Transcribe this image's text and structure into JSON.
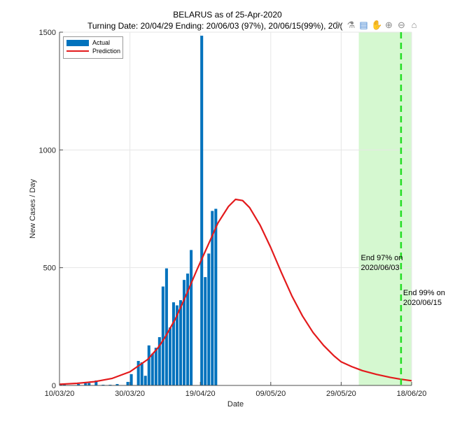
{
  "window": {
    "title_line1": "BELARUS as of 25-Apr-2020",
    "title_line2": "Turning Date: 20/04/29  Ending: 20/06/03 (97%), 20/06/15(99%), 20/("
  },
  "toolbar": [
    {
      "name": "brush-icon",
      "glyph": "✎"
    },
    {
      "name": "datatip-icon",
      "glyph": "⚗"
    },
    {
      "name": "insert-legend-icon",
      "glyph": "▤"
    },
    {
      "name": "pan-hand-icon",
      "glyph": "✋"
    },
    {
      "name": "zoom-in-icon",
      "glyph": "⊕"
    },
    {
      "name": "zoom-out-icon",
      "glyph": "⊖"
    },
    {
      "name": "home-icon",
      "glyph": "⌂"
    }
  ],
  "colors": {
    "bar": "#0072BD",
    "prediction": "#e31a1c",
    "band": "#d5f8d0",
    "dashed": "#22dd22",
    "grid": "#e6e6e6",
    "axis": "#4d4d4d"
  },
  "chart_data": {
    "type": "bar",
    "title": "BELARUS as of 25-Apr-2020",
    "subtitle": "Turning Date: 20/04/29  Ending: 20/06/03 (97%), 20/06/15(99%), 20/(",
    "xlabel": "Date",
    "ylabel": "New Cases / Day",
    "x_start_date": "10/03/20",
    "x_range_days": [
      0,
      100
    ],
    "ylim": [
      0,
      1500
    ],
    "yticks": [
      0,
      500,
      1000,
      1500
    ],
    "xticks": [
      {
        "day": 0,
        "label": "10/03/20"
      },
      {
        "day": 20,
        "label": "30/03/20"
      },
      {
        "day": 40,
        "label": "19/04/20"
      },
      {
        "day": 60,
        "label": "09/05/20"
      },
      {
        "day": 80,
        "label": "29/05/20"
      },
      {
        "day": 100,
        "label": "18/06/20"
      }
    ],
    "grid": true,
    "legend": {
      "position": "top-left",
      "entries": [
        "Actual",
        "Prediction"
      ]
    },
    "series": [
      {
        "name": "Actual",
        "type": "bar",
        "start_day": 0,
        "values": [
          3,
          3,
          0,
          0,
          0,
          6,
          0,
          10,
          10,
          0,
          21,
          0,
          3,
          0,
          3,
          0,
          6,
          0,
          0,
          15,
          48,
          0,
          104,
          98,
          41,
          170,
          135,
          160,
          205,
          420,
          497,
          246,
          353,
          340,
          362,
          448,
          475,
          575,
          0,
          0,
          1485,
          460,
          560,
          741,
          750
        ]
      },
      {
        "name": "Prediction",
        "type": "line",
        "points": [
          [
            0,
            5
          ],
          [
            5,
            9
          ],
          [
            10,
            16
          ],
          [
            15,
            30
          ],
          [
            20,
            58
          ],
          [
            25,
            110
          ],
          [
            28,
            160
          ],
          [
            30,
            205
          ],
          [
            33,
            285
          ],
          [
            36,
            385
          ],
          [
            39,
            490
          ],
          [
            42,
            590
          ],
          [
            45,
            690
          ],
          [
            48,
            760
          ],
          [
            50,
            790
          ],
          [
            52,
            785
          ],
          [
            54,
            755
          ],
          [
            57,
            680
          ],
          [
            60,
            585
          ],
          [
            63,
            480
          ],
          [
            66,
            380
          ],
          [
            69,
            295
          ],
          [
            72,
            225
          ],
          [
            75,
            170
          ],
          [
            78,
            125
          ],
          [
            80,
            100
          ],
          [
            83,
            80
          ],
          [
            86,
            63
          ],
          [
            90,
            47
          ],
          [
            94,
            34
          ],
          [
            97,
            26
          ],
          [
            100,
            20
          ]
        ]
      }
    ],
    "annotations": [
      {
        "type": "band",
        "from_day": 85,
        "to_day": 100,
        "label": "End 97% on\n2020/06/03"
      },
      {
        "type": "vline",
        "day": 97,
        "style": "dashed",
        "label": "End 99% on\n2020/06/15"
      }
    ]
  }
}
